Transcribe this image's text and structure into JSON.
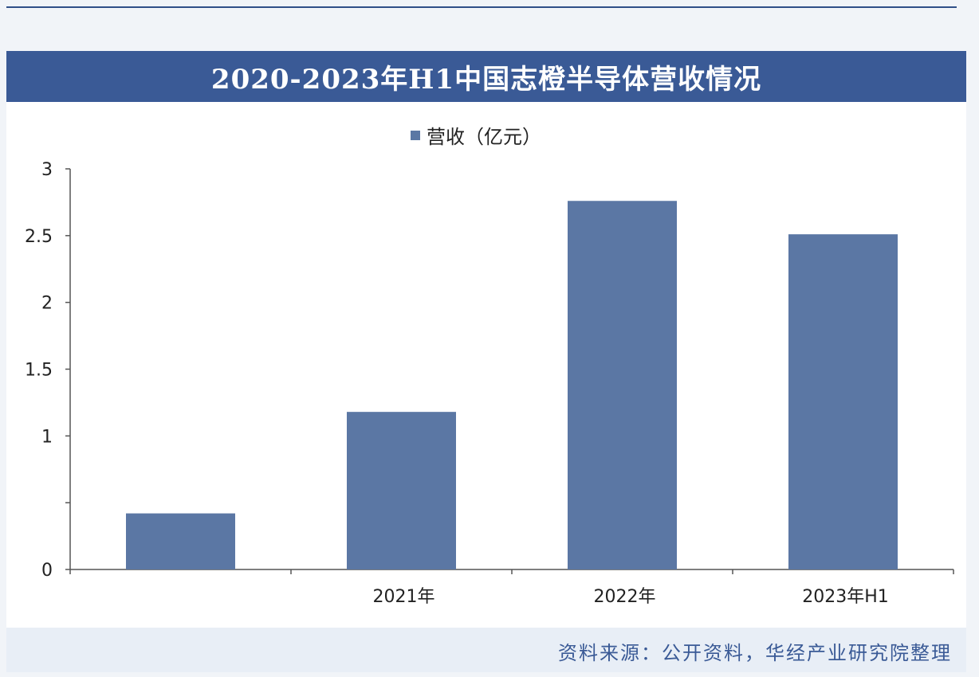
{
  "colors": {
    "title_bar": "#3a5a96",
    "bar": "#5b77a4",
    "source_text": "#3a5a96"
  },
  "header": {
    "title": "2020-2023年H1中国志橙半导体营收情况"
  },
  "footer": {
    "source": "资料来源：公开资料，华经产业研究院整理"
  },
  "chart_data": {
    "type": "bar",
    "categories": [
      "",
      "2021年",
      "2022年",
      "2023年H1"
    ],
    "series": [
      {
        "name": "营收（亿元）",
        "values": [
          0.42,
          1.18,
          2.76,
          2.51
        ]
      }
    ],
    "y_ticks": [
      "0",
      "",
      "1",
      "1.5",
      "2",
      "2.5",
      "3"
    ],
    "ylim": [
      0,
      3
    ],
    "grid": false,
    "legend_position": "top-center"
  }
}
